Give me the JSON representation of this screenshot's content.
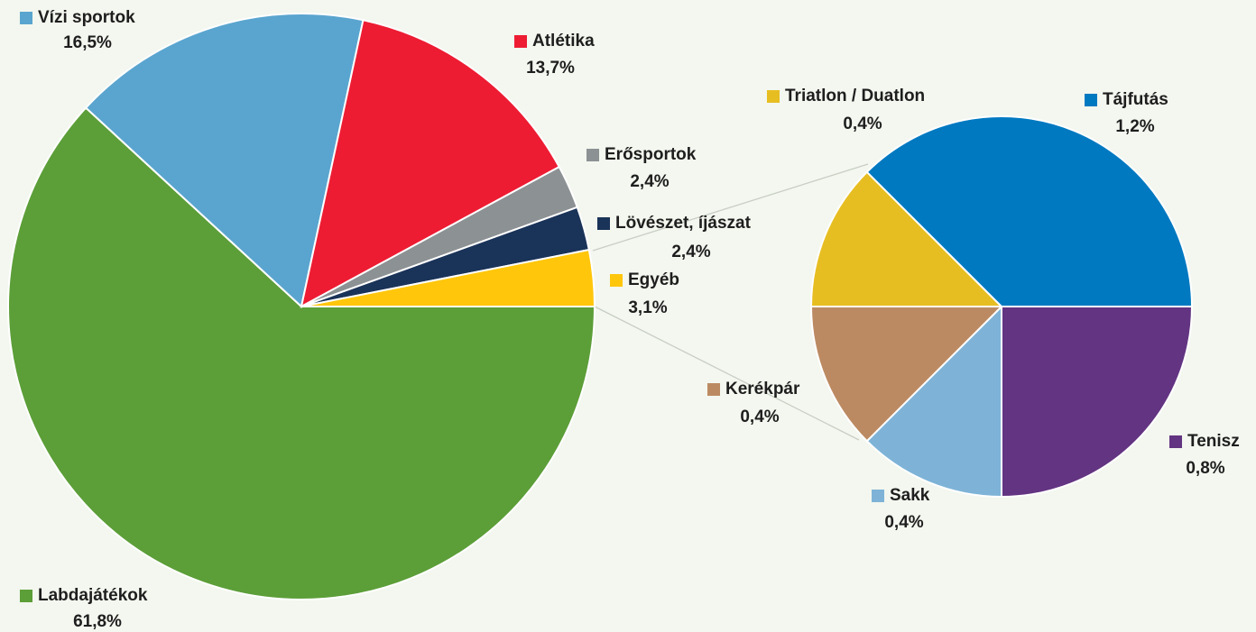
{
  "chart_data": [
    {
      "type": "pie",
      "categories": [
        "Labdajátékok",
        "Vízi sportok",
        "Atlétika",
        "Erősportok",
        "Lövészet, íjászat",
        "Egyéb"
      ],
      "values": [
        61.8,
        16.5,
        13.7,
        2.4,
        2.4,
        3.1
      ],
      "value_labels": [
        "61,8%",
        "16,5%",
        "13,7%",
        "2,4%",
        "2,4%",
        "3,1%"
      ],
      "colors": [
        "#5c9e38",
        "#5aa5cf",
        "#ed1c33",
        "#8c9194",
        "#1a3358",
        "#ffc60b"
      ]
    },
    {
      "type": "pie",
      "categories": [
        "Tenisz",
        "Sakk",
        "Kerékpár",
        "Triatlon / Duatlon",
        "Tájfutás"
      ],
      "values": [
        0.8,
        0.4,
        0.4,
        0.4,
        1.2
      ],
      "value_labels": [
        "0,8%",
        "0,4%",
        "0,4%",
        "0,4%",
        "1,2%"
      ],
      "colors": [
        "#633482",
        "#7eb3d7",
        "#bc8a62",
        "#e7be22",
        "#0079c1"
      ]
    }
  ]
}
